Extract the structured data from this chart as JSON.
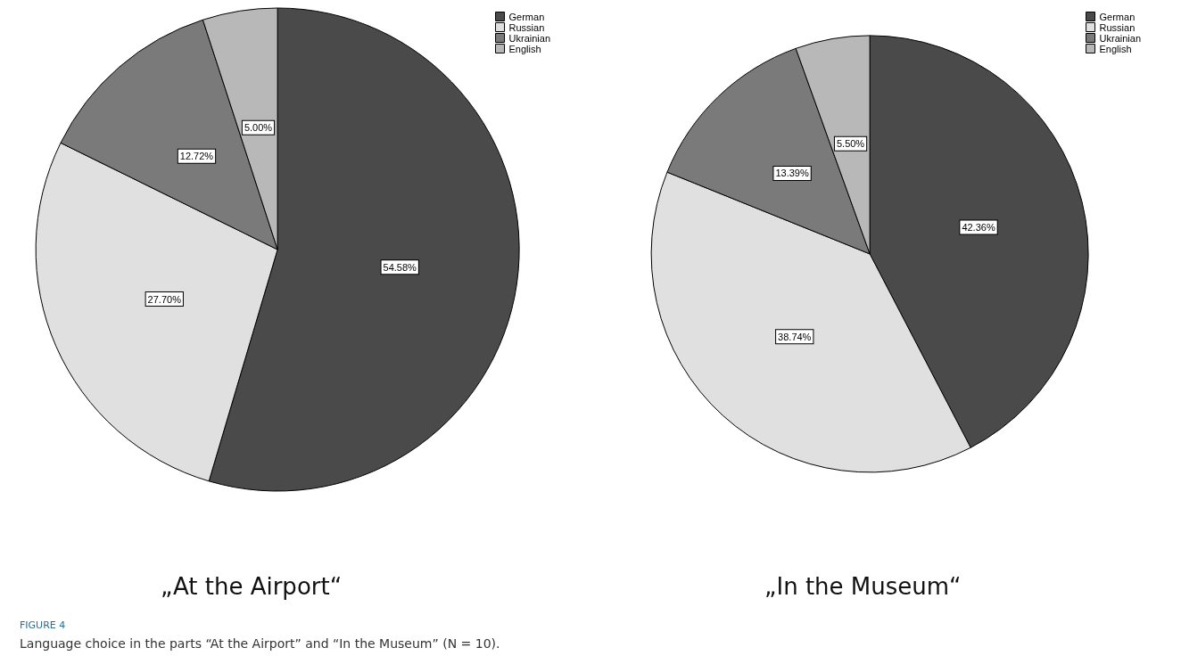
{
  "chart_data": [
    {
      "type": "pie",
      "title": "„At the Airport“",
      "categories": [
        "German",
        "Russian",
        "Ukrainian",
        "English"
      ],
      "values": [
        54.58,
        27.7,
        12.72,
        5.0
      ],
      "value_labels": [
        "54.58%",
        "27.70%",
        "12.72%",
        "5.00%"
      ],
      "colors": [
        "#4a4a4a",
        "#e0e0e0",
        "#7a7a7a",
        "#b8b8b8"
      ],
      "legend": "top right",
      "annotations": [
        "FIGURE 4",
        "Language choice in the parts “At the Airport” and “In the Museum” (N = 10)."
      ]
    },
    {
      "type": "pie",
      "title": "„In the Museum“",
      "categories": [
        "German",
        "Russian",
        "Ukrainian",
        "English"
      ],
      "values": [
        42.36,
        38.74,
        13.39,
        5.5
      ],
      "value_labels": [
        "42.36%",
        "38.74%",
        "13.39%",
        "5.50%"
      ],
      "colors": [
        "#4a4a4a",
        "#e0e0e0",
        "#7a7a7a",
        "#b8b8b8"
      ],
      "legend": "top right"
    }
  ]
}
